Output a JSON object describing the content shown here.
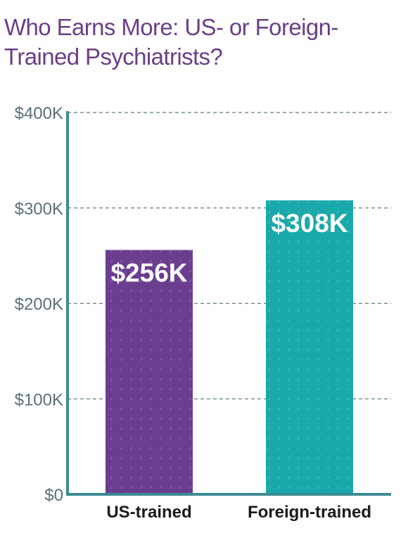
{
  "chart_data": {
    "type": "bar",
    "title": "Who Earns More: US- or Foreign-Trained Psychiatrists?",
    "categories": [
      "US-trained",
      "Foreign-trained"
    ],
    "values": [
      256,
      308
    ],
    "data_labels": [
      "$256K",
      "$308K"
    ],
    "bar_colors": [
      "#6b3d8f",
      "#1aa9aa"
    ],
    "ylim": [
      0,
      400
    ],
    "yticks": [
      0,
      100,
      200,
      300,
      400
    ],
    "ytick_labels": [
      "$0",
      "$100K",
      "$200K",
      "$300K",
      "$400K"
    ],
    "xlabel": "",
    "ylabel": "",
    "grid": true,
    "axis_color": "#3d8a93",
    "grid_color": "#5f7c8a"
  }
}
